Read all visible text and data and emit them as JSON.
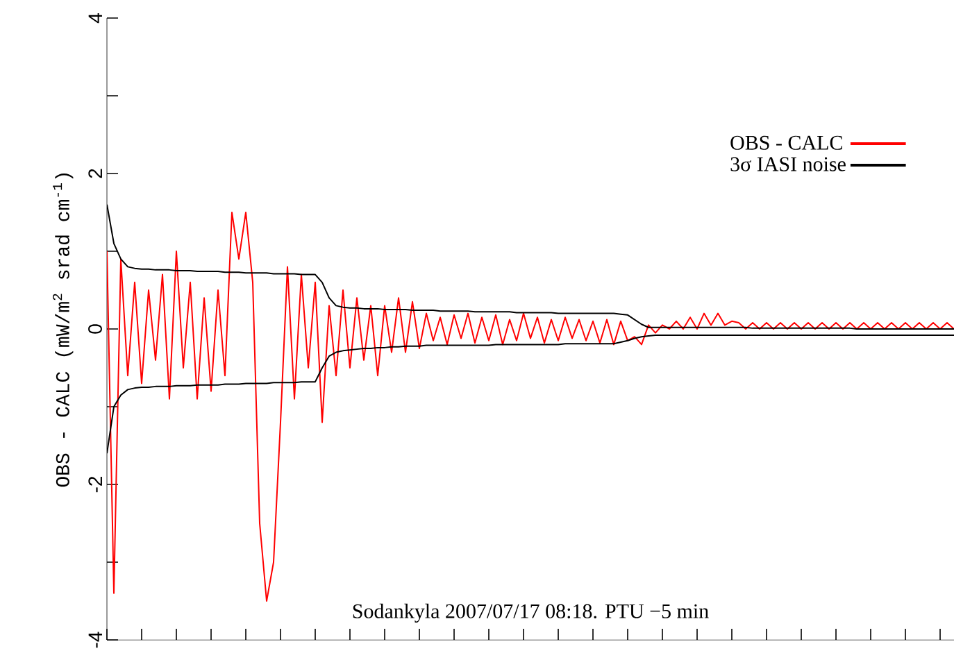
{
  "chart_data": {
    "type": "line",
    "ylabel": "OBS - CALC (mW/m$^{2}$ srad cm$^{-1}$)",
    "annotations": [
      "Sodankyla 2007/07/17 08:18. PTU −5 min"
    ],
    "categories": [
      null,
      null,
      null,
      null,
      null,
      null,
      null,
      null,
      null,
      null,
      null,
      null,
      null,
      null,
      null,
      null,
      null,
      null,
      null,
      null,
      null,
      null,
      null,
      null,
      null,
      null,
      null,
      null,
      null,
      null,
      null,
      null,
      null,
      null,
      null,
      null,
      null,
      null,
      null,
      null,
      null,
      null,
      null,
      null,
      null,
      null,
      null,
      null,
      null,
      null,
      null,
      null,
      null,
      null,
      null,
      null,
      null,
      null,
      null,
      null,
      null,
      null,
      null,
      null,
      null,
      null,
      null,
      null,
      null,
      null,
      null,
      null,
      null,
      null,
      null,
      null,
      null,
      null,
      null,
      null,
      null,
      null,
      null,
      null,
      null,
      null,
      null,
      null,
      null,
      null,
      null,
      null,
      null,
      null,
      null,
      null,
      null,
      null,
      null,
      null,
      null,
      null,
      null,
      null,
      null,
      null,
      null,
      null,
      null,
      null,
      null,
      null,
      null,
      null,
      null,
      null,
      null,
      null,
      null,
      null,
      null,
      null,
      null
    ],
    "ylim": [
      -4,
      4
    ],
    "yticks": [
      -4,
      {
        "value": -3,
        "label": null
      },
      -2,
      {
        "value": -1,
        "label": null
      },
      0,
      {
        "value": 1,
        "label": null
      },
      2,
      {
        "value": 3,
        "label": null
      },
      4
    ],
    "legend": "top right",
    "grid": false,
    "marker": "none",
    "line_style": "solid",
    "series": [
      {
        "name": "OBS - CALC",
        "color": "#ff0000",
        "values": [
          1.0,
          -3.4,
          0.9,
          -0.6,
          0.6,
          -0.7,
          0.5,
          -0.4,
          0.7,
          -0.9,
          1.0,
          -0.5,
          0.6,
          -0.9,
          0.4,
          -0.8,
          0.5,
          -0.6,
          1.5,
          0.9,
          1.5,
          0.6,
          -2.5,
          -3.5,
          -3.0,
          -1.2,
          0.8,
          -0.9,
          0.7,
          -0.5,
          0.6,
          -1.2,
          0.3,
          -0.6,
          0.5,
          -0.5,
          0.4,
          -0.4,
          0.3,
          -0.6,
          0.3,
          -0.3,
          0.4,
          -0.3,
          0.35,
          -0.25,
          0.2,
          -0.15,
          0.15,
          -0.2,
          0.18,
          -0.12,
          0.2,
          -0.18,
          0.15,
          -0.15,
          0.18,
          -0.2,
          0.12,
          -0.15,
          0.2,
          -0.12,
          0.15,
          -0.18,
          0.12,
          -0.15,
          0.15,
          -0.12,
          0.12,
          -0.15,
          0.1,
          -0.18,
          0.12,
          -0.2,
          0.1,
          -0.15,
          -0.1,
          -0.2,
          0.05,
          -0.05,
          0.05,
          0.0,
          0.1,
          0.0,
          0.15,
          0.0,
          0.2,
          0.05,
          0.2,
          0.05,
          0.1,
          0.08,
          0.0,
          0.08,
          0.0,
          0.08,
          0.0,
          0.08,
          0.0,
          0.08,
          0.0,
          0.08,
          0.0,
          0.08,
          0.0,
          0.08,
          0.0,
          0.08,
          0.0,
          0.08,
          0.0,
          0.08,
          0.0,
          0.08,
          0.0,
          0.08,
          0.0,
          0.08,
          0.0,
          0.08,
          0.0,
          0.08,
          0.0
        ]
      },
      {
        "name": "3σ IASI noise",
        "color": "#000000",
        "values": [
          1.6,
          1.1,
          0.9,
          0.8,
          0.78,
          0.77,
          0.77,
          0.76,
          0.76,
          0.76,
          0.75,
          0.75,
          0.75,
          0.74,
          0.74,
          0.74,
          0.74,
          0.73,
          0.73,
          0.73,
          0.72,
          0.72,
          0.72,
          0.72,
          0.71,
          0.71,
          0.71,
          0.71,
          0.7,
          0.7,
          0.7,
          0.6,
          0.4,
          0.3,
          0.28,
          0.27,
          0.27,
          0.26,
          0.26,
          0.26,
          0.25,
          0.25,
          0.25,
          0.25,
          0.24,
          0.24,
          0.24,
          0.24,
          0.23,
          0.23,
          0.23,
          0.23,
          0.23,
          0.22,
          0.22,
          0.22,
          0.22,
          0.22,
          0.22,
          0.21,
          0.21,
          0.21,
          0.21,
          0.21,
          0.21,
          0.2,
          0.2,
          0.2,
          0.2,
          0.2,
          0.2,
          0.2,
          0.2,
          0.2,
          0.19,
          0.18,
          0.12,
          0.06,
          0.02,
          0.02,
          0.02,
          0.02,
          0.02,
          0.02,
          0.02,
          0.02,
          0.02,
          0.02,
          0.02,
          0.02,
          0.02,
          0.02,
          0.02,
          0.01,
          0.01,
          0.01,
          0.01,
          0.01,
          0.01,
          0.01,
          0.01,
          0.01,
          0.01,
          0.01,
          0.01,
          0.01,
          0.01,
          0.01,
          0.0,
          0.0,
          0.0,
          0.0,
          0.0,
          0.0,
          0.0,
          0.0,
          0.0,
          0.0,
          0.0,
          0.0,
          0.0,
          0.0,
          0.0
        ]
      },
      {
        "color": "#000000",
        "values": [
          -1.6,
          -1.0,
          -0.85,
          -0.78,
          -0.76,
          -0.75,
          -0.75,
          -0.74,
          -0.74,
          -0.74,
          -0.73,
          -0.73,
          -0.73,
          -0.72,
          -0.72,
          -0.72,
          -0.72,
          -0.71,
          -0.71,
          -0.71,
          -0.7,
          -0.7,
          -0.7,
          -0.7,
          -0.69,
          -0.69,
          -0.69,
          -0.69,
          -0.68,
          -0.68,
          -0.68,
          -0.5,
          -0.35,
          -0.3,
          -0.28,
          -0.27,
          -0.26,
          -0.25,
          -0.25,
          -0.24,
          -0.24,
          -0.23,
          -0.23,
          -0.22,
          -0.22,
          -0.22,
          -0.21,
          -0.21,
          -0.21,
          -0.21,
          -0.21,
          -0.21,
          -0.21,
          -0.21,
          -0.21,
          -0.21,
          -0.2,
          -0.2,
          -0.2,
          -0.2,
          -0.2,
          -0.2,
          -0.2,
          -0.2,
          -0.2,
          -0.2,
          -0.19,
          -0.19,
          -0.19,
          -0.19,
          -0.19,
          -0.19,
          -0.19,
          -0.19,
          -0.17,
          -0.15,
          -0.12,
          -0.1,
          -0.09,
          -0.08,
          -0.08,
          -0.08,
          -0.08,
          -0.08,
          -0.08,
          -0.08,
          -0.08,
          -0.08,
          -0.08,
          -0.08,
          -0.08,
          -0.08,
          -0.08,
          -0.08,
          -0.08,
          -0.08,
          -0.08,
          -0.08,
          -0.08,
          -0.08,
          -0.08,
          -0.08,
          -0.08,
          -0.08,
          -0.08,
          -0.08,
          -0.08,
          -0.08,
          -0.08,
          -0.08,
          -0.08,
          -0.08,
          -0.08,
          -0.08,
          -0.08,
          -0.08,
          -0.08,
          -0.08,
          -0.08,
          -0.08,
          -0.08,
          -0.08,
          -0.08
        ]
      }
    ]
  }
}
